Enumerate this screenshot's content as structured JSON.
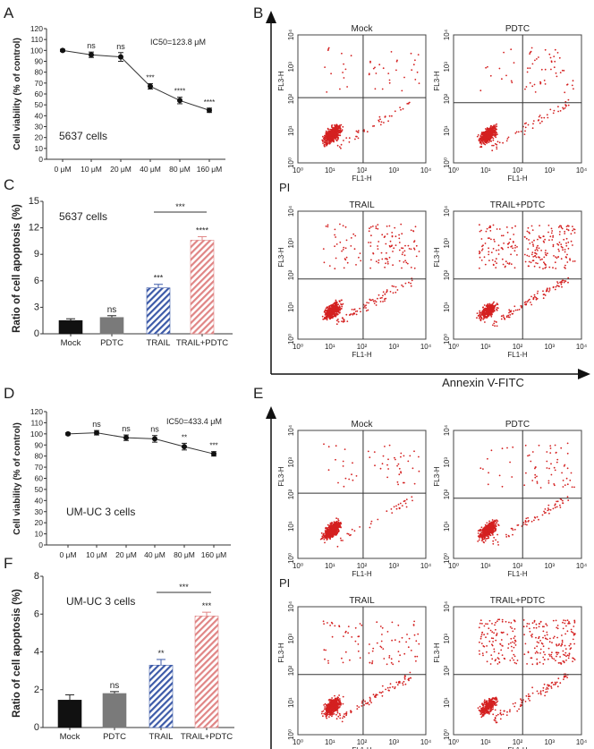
{
  "panel_letters": [
    "A",
    "B",
    "C",
    "D",
    "E",
    "F"
  ],
  "chart_data": [
    {
      "id": "A",
      "type": "line",
      "ylabel": "Cell viability (% of control)",
      "ylim": [
        0,
        120
      ],
      "yticks": [
        0,
        10,
        20,
        30,
        40,
        50,
        60,
        70,
        80,
        90,
        100,
        110,
        120
      ],
      "categories": [
        "0 μM",
        "10 μM",
        "20 μM",
        "40 μM",
        "80 μM",
        "160 μM"
      ],
      "values": [
        100,
        96,
        94,
        67,
        54,
        45
      ],
      "errors": [
        1,
        2.5,
        4,
        2.5,
        3,
        2
      ],
      "significance": [
        "",
        "ns",
        "ns",
        "***",
        "****",
        "****"
      ],
      "annotation": "IC50=123.8 μM",
      "cell_label": "5637 cells"
    },
    {
      "id": "C",
      "type": "bar",
      "ylabel": "Ratio of cell apoptosis (%)",
      "ylim": [
        0,
        15
      ],
      "yticks": [
        0,
        3,
        6,
        9,
        12,
        15
      ],
      "categories": [
        "Mock",
        "PDTC",
        "TRAIL",
        "TRAIL+PDTC"
      ],
      "values": [
        1.5,
        1.85,
        5.2,
        10.6
      ],
      "errors": [
        0.2,
        0.2,
        0.4,
        0.4
      ],
      "significance": [
        "",
        "ns",
        "***",
        "****"
      ],
      "bracket": "***",
      "cell_label": "5637 cells",
      "colors": [
        "#111111",
        "#7a7a7a",
        "#3c5aa8",
        "#e08585"
      ]
    },
    {
      "id": "D",
      "type": "line",
      "ylabel": "Cell viability (% of control)",
      "ylim": [
        0,
        120
      ],
      "yticks": [
        0,
        10,
        20,
        30,
        40,
        50,
        60,
        70,
        80,
        90,
        100,
        110,
        120
      ],
      "categories": [
        "0 μM",
        "10 μM",
        "20 μM",
        "40 μM",
        "80 μM",
        "160 μM"
      ],
      "values": [
        100,
        101,
        96.5,
        95.5,
        88.5,
        82
      ],
      "errors": [
        1,
        2,
        2.5,
        3,
        3,
        2
      ],
      "significance": [
        "",
        "ns",
        "ns",
        "ns",
        "**",
        "***"
      ],
      "annotation": "IC50=433.4 μM",
      "cell_label": "UM-UC 3 cells"
    },
    {
      "id": "F",
      "type": "bar",
      "ylabel": "Ratio of cell apoptosis (%)",
      "ylim": [
        0,
        8
      ],
      "yticks": [
        0,
        2,
        4,
        6,
        8
      ],
      "categories": [
        "Mock",
        "PDTC",
        "TRAIL",
        "TRAIL+PDTC"
      ],
      "values": [
        1.45,
        1.8,
        3.3,
        5.9
      ],
      "errors": [
        0.28,
        0.1,
        0.3,
        0.2
      ],
      "significance": [
        "",
        "ns",
        "**",
        "***"
      ],
      "bracket": "***",
      "cell_label": "UM-UC 3 cells",
      "colors": [
        "#111111",
        "#7a7a7a",
        "#3c5aa8",
        "#e08585"
      ]
    }
  ],
  "flow": {
    "y_axis_label": "PI",
    "x_axis_label": "Annexin V-FITC",
    "plot_xlabel": "FL1-H",
    "plot_ylabel": "FL3-H",
    "ticks": [
      "10⁰",
      "10¹",
      "10²",
      "10³",
      "10⁴"
    ],
    "dot_color": "#d42020",
    "panels": [
      {
        "id": "B",
        "titles": [
          "Mock",
          "PDTC",
          "TRAIL",
          "TRAIL+PDTC"
        ]
      },
      {
        "id": "E",
        "titles": [
          "Mock",
          "PDTC",
          "TRAIL",
          "TRAIL+PDTC"
        ]
      }
    ]
  }
}
